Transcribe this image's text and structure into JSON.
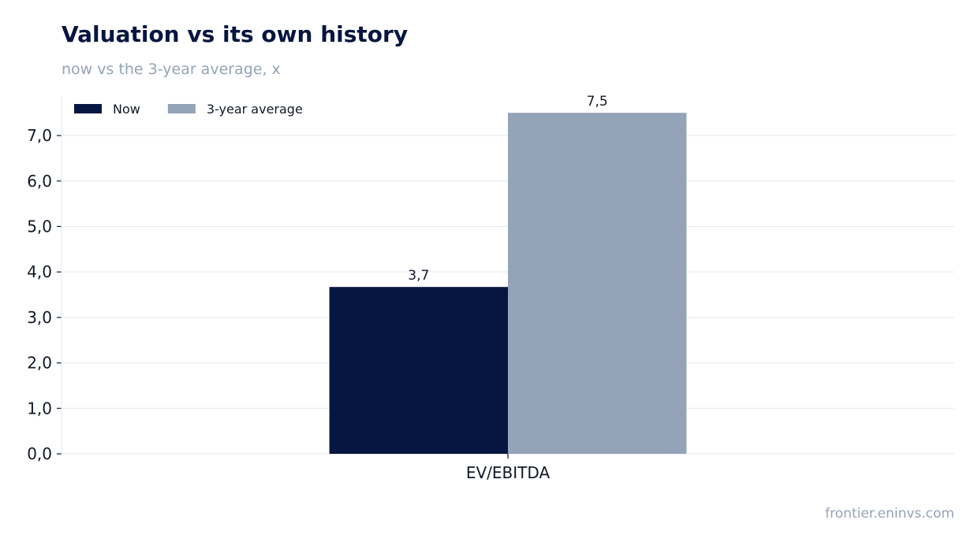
{
  "chart_data": {
    "type": "bar",
    "title": "Valuation vs its own history",
    "subtitle": "now vs the 3-year average, x",
    "categories": [
      "EV/EBITDA"
    ],
    "series": [
      {
        "name": "Now",
        "values": [
          3.67
        ],
        "labels": [
          "3,7"
        ],
        "color": "#071640"
      },
      {
        "name": "3-year average",
        "values": [
          7.5
        ],
        "labels": [
          "7,5"
        ],
        "color": "#94a3b8"
      }
    ],
    "ylim": [
      0,
      7.85
    ],
    "yticks": [
      0,
      1,
      2,
      3,
      4,
      5,
      6,
      7
    ],
    "ytick_labels": [
      "0,0",
      "1,0",
      "2,0",
      "3,0",
      "4,0",
      "5,0",
      "6,0",
      "7,0"
    ],
    "grid": true,
    "legend": "top-left",
    "xlabel": "",
    "ylabel": ""
  },
  "source": "frontier.eninvs.com",
  "colors": {
    "grid": "#e2e8f0",
    "axis": "#111827"
  }
}
